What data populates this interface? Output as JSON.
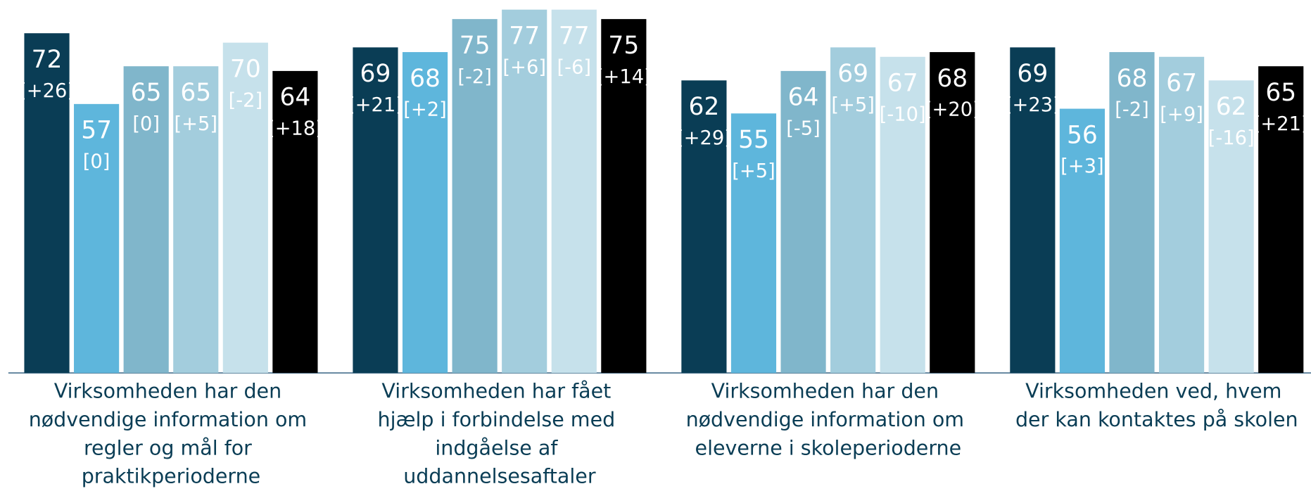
{
  "chart_data": {
    "type": "bar",
    "categories": [
      "Virksomheden har den nødvendige information om regler og mål for praktikperioderne",
      "Virksomheden har fået hjælp i forbindelse med indgåelse af uddannelsesaftaler",
      "Virksomheden har den nødvendige information om eleverne i skoleperioderne",
      "Virksomheden ved, hvem der kan kontaktes på skolen"
    ],
    "ylim": [
      0,
      79
    ],
    "series": [
      {
        "color": "#0a3d55",
        "values": [
          72,
          69,
          62,
          69
        ],
        "changes": [
          26,
          21,
          29,
          23
        ],
        "change_labels": [
          "[+26]",
          "[+21]",
          "[+29]",
          "[+23]"
        ]
      },
      {
        "color": "#5eb6dc",
        "values": [
          57,
          68,
          55,
          56
        ],
        "changes": [
          0,
          2,
          5,
          3
        ],
        "change_labels": [
          "[0]",
          "[+2]",
          "[+5]",
          "[+3]"
        ]
      },
      {
        "color": "#80b6cb",
        "values": [
          65,
          75,
          64,
          68
        ],
        "changes": [
          0,
          -2,
          -5,
          -2
        ],
        "change_labels": [
          "[0]",
          "[-2]",
          "[-5]",
          "[-2]"
        ]
      },
      {
        "color": "#a3cddd",
        "values": [
          65,
          77,
          69,
          67
        ],
        "changes": [
          5,
          6,
          5,
          9
        ],
        "change_labels": [
          "[+5]",
          "[+6]",
          "[+5]",
          "[+9]"
        ]
      },
      {
        "color": "#c6e1eb",
        "values": [
          70,
          77,
          67,
          62
        ],
        "changes": [
          -2,
          -6,
          -10,
          -16
        ],
        "change_labels": [
          "[-2]",
          "[-6]",
          "[-10]",
          "[-16]"
        ]
      },
      {
        "color": "#000000",
        "values": [
          64,
          75,
          68,
          65
        ],
        "changes": [
          18,
          14,
          20,
          21
        ],
        "change_labels": [
          "[+18]",
          "[+14]",
          "[+20]",
          "[+21]"
        ]
      }
    ]
  }
}
